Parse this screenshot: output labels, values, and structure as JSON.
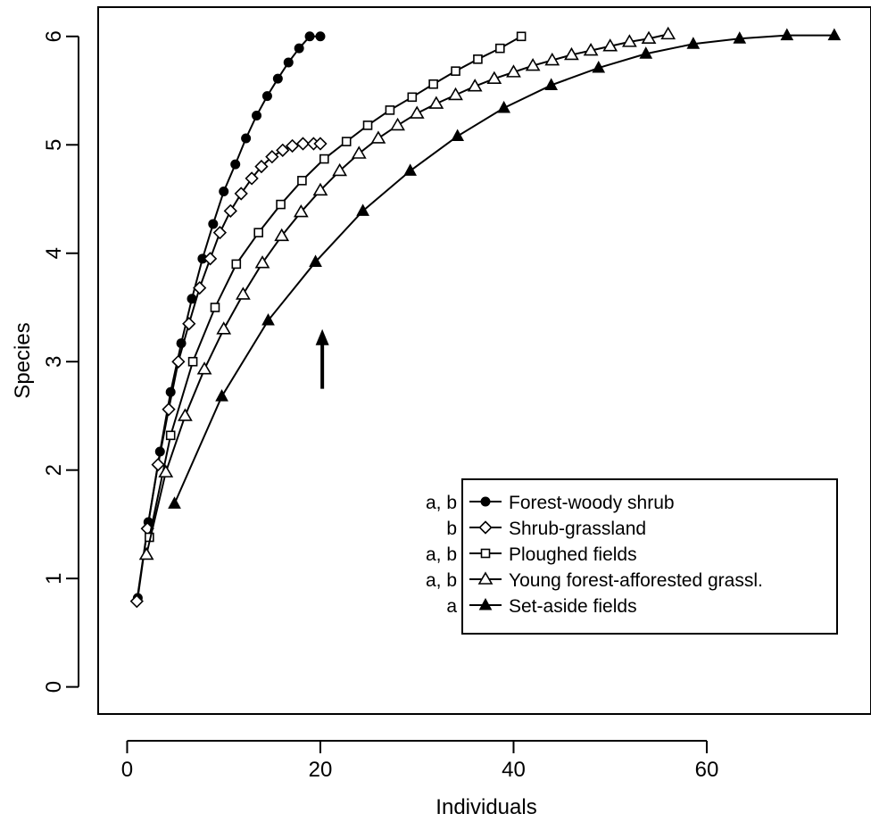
{
  "chart_data": {
    "type": "line",
    "title": "",
    "xlabel": "Individuals",
    "ylabel": "Species",
    "xlim": [
      -3,
      77
    ],
    "ylim": [
      -0.25,
      6.27
    ],
    "x_ticks": [
      0,
      20,
      40,
      60
    ],
    "y_ticks": [
      0,
      1,
      2,
      3,
      4,
      5,
      6
    ],
    "grid": false,
    "legend_position": "bottom-right",
    "annotation": {
      "type": "arrow",
      "x": 20.2,
      "y_from": 2.75,
      "y_to": 3.3
    },
    "series": [
      {
        "name": "Forest-woody shrub",
        "group": "a, b",
        "marker": "filled-circle",
        "x": [
          1.1,
          2.2,
          3.4,
          4.5,
          5.6,
          6.7,
          7.8,
          8.9,
          10.0,
          11.2,
          12.3,
          13.4,
          14.5,
          15.6,
          16.7,
          17.8,
          18.9,
          20.0
        ],
        "y": [
          0.82,
          1.52,
          2.17,
          2.72,
          3.17,
          3.58,
          3.95,
          4.27,
          4.57,
          4.82,
          5.06,
          5.27,
          5.45,
          5.61,
          5.76,
          5.89,
          6.0,
          6.0
        ]
      },
      {
        "name": "Shrub-grassland",
        "group": "b",
        "marker": "open-diamond",
        "x": [
          1.0,
          2.1,
          3.2,
          4.3,
          5.3,
          6.4,
          7.5,
          8.6,
          9.6,
          10.7,
          11.8,
          12.9,
          13.9,
          15.0,
          16.1,
          17.1,
          18.2,
          19.3,
          20.0
        ],
        "y": [
          0.79,
          1.46,
          2.05,
          2.56,
          3.0,
          3.35,
          3.68,
          3.95,
          4.19,
          4.39,
          4.55,
          4.69,
          4.8,
          4.89,
          4.95,
          4.99,
          5.01,
          5.01,
          5.01
        ]
      },
      {
        "name": "Ploughed fields",
        "group": "a, b",
        "marker": "open-square",
        "x": [
          2.3,
          4.5,
          6.8,
          9.1,
          11.3,
          13.6,
          15.9,
          18.1,
          20.4,
          22.7,
          24.9,
          27.2,
          29.5,
          31.7,
          34.0,
          36.3,
          38.6,
          40.8
        ],
        "y": [
          1.38,
          2.32,
          3.0,
          3.5,
          3.9,
          4.19,
          4.45,
          4.67,
          4.87,
          5.03,
          5.18,
          5.32,
          5.44,
          5.56,
          5.68,
          5.79,
          5.89,
          6.0
        ]
      },
      {
        "name": "Young forest-afforested grassl.",
        "group": "a, b",
        "marker": "open-triangle",
        "x": [
          2.0,
          4.0,
          6.0,
          8.0,
          10.0,
          12.0,
          14.0,
          16.0,
          18.0,
          20.0,
          22.0,
          24.0,
          26.0,
          28.0,
          30.0,
          32.0,
          34.0,
          36.0,
          38.0,
          40.0,
          42.0,
          44.0,
          46.0,
          48.0,
          50.0,
          52.0,
          54.0,
          56.0
        ],
        "y": [
          1.22,
          1.98,
          2.5,
          2.93,
          3.3,
          3.62,
          3.91,
          4.16,
          4.38,
          4.58,
          4.76,
          4.92,
          5.06,
          5.18,
          5.29,
          5.38,
          5.46,
          5.54,
          5.61,
          5.67,
          5.73,
          5.78,
          5.83,
          5.87,
          5.91,
          5.95,
          5.98,
          6.02
        ]
      },
      {
        "name": "Set-aside fields",
        "group": "a",
        "marker": "filled-triangle",
        "x": [
          4.9,
          9.8,
          14.6,
          19.5,
          24.4,
          29.3,
          34.2,
          39.0,
          43.9,
          48.8,
          53.7,
          58.6,
          63.4,
          68.3,
          73.2
        ],
        "y": [
          1.69,
          2.68,
          3.38,
          3.92,
          4.39,
          4.76,
          5.08,
          5.34,
          5.55,
          5.71,
          5.84,
          5.93,
          5.98,
          6.01,
          6.01
        ]
      }
    ]
  }
}
